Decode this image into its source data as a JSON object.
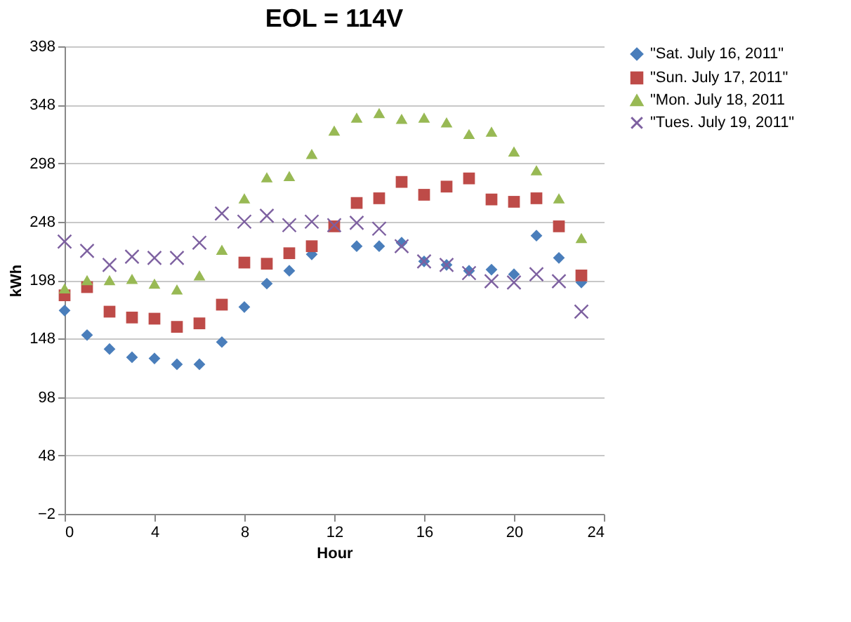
{
  "chart_data": {
    "type": "scatter",
    "title": "EOL = 114V",
    "xlabel": "Hour",
    "ylabel": "kWh",
    "x": [
      0,
      1,
      2,
      3,
      4,
      5,
      6,
      7,
      8,
      9,
      10,
      11,
      12,
      13,
      14,
      15,
      16,
      17,
      18,
      19,
      20,
      21,
      22,
      23
    ],
    "xlim": [
      0,
      24
    ],
    "xticks": [
      0,
      4,
      8,
      12,
      16,
      20,
      24
    ],
    "ylim": [
      -2,
      398
    ],
    "yticks": [
      -2,
      48,
      98,
      148,
      198,
      248,
      298,
      348,
      398
    ],
    "grid": "y",
    "legend": "right",
    "series": [
      {
        "name": "\"Sat. July 16, 2011\"",
        "color": "#4a7ebb",
        "marker": "diamond",
        "values": [
          172,
          151,
          139,
          132,
          131,
          126,
          126,
          145,
          175,
          195,
          206,
          220,
          null,
          227,
          227,
          230,
          214,
          211,
          206,
          207,
          203,
          236,
          217,
          196
        ]
      },
      {
        "name": "\"Sun. July 17, 2011\"",
        "color": "#be4b48",
        "marker": "square",
        "values": [
          185,
          192,
          171,
          166,
          165,
          158,
          161,
          177,
          213,
          212,
          221,
          227,
          244,
          264,
          268,
          282,
          271,
          278,
          285,
          267,
          265,
          268,
          244,
          202
        ]
      },
      {
        "name": "\"Mon. July 18, 2011",
        "color": "#98b954",
        "marker": "triangle",
        "values": [
          191,
          198,
          198,
          199,
          195,
          190,
          202,
          224,
          268,
          286,
          287,
          306,
          326,
          337,
          341,
          336,
          337,
          333,
          323,
          325,
          308,
          292,
          268,
          234
        ]
      },
      {
        "name": "\"Tues. July 19, 2011\"",
        "color": "#7d60a0",
        "marker": "cross",
        "values": [
          231,
          223,
          211,
          218,
          217,
          217,
          230,
          255,
          248,
          253,
          245,
          248,
          245,
          247,
          242,
          227,
          214,
          211,
          204,
          197,
          196,
          203,
          197,
          171
        ]
      }
    ]
  }
}
